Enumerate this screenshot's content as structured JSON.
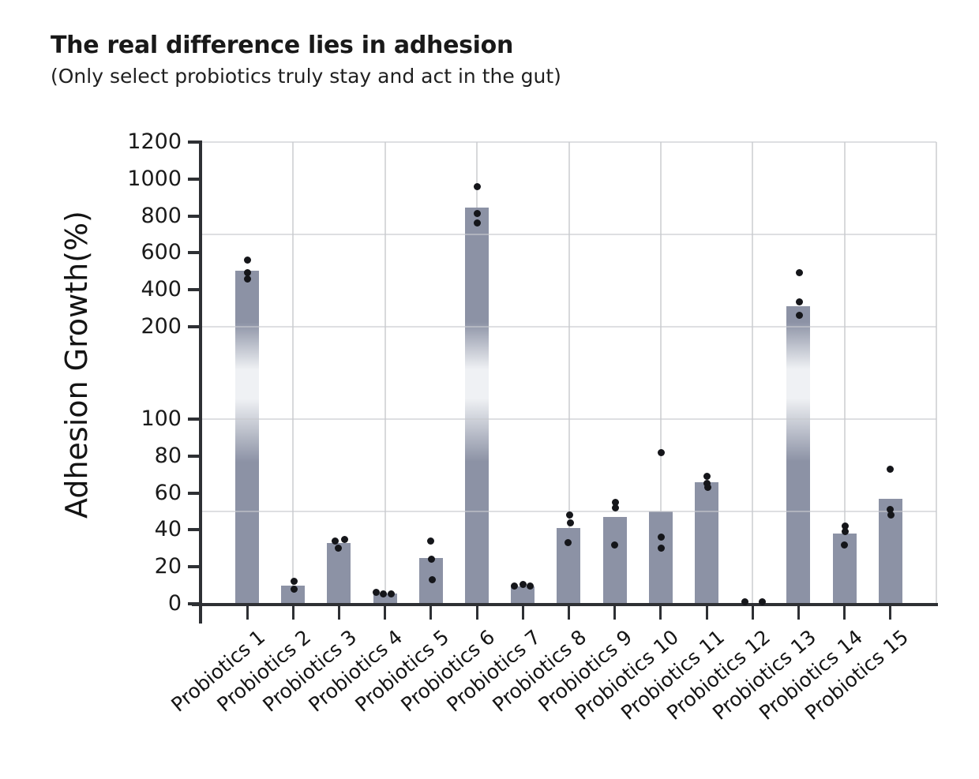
{
  "chart_data": {
    "type": "bar",
    "title": "The real difference lies in adhesion",
    "subtitle": "(Only select probiotics truly stay and act in the gut)",
    "ylabel": "Adhesion Growth(%)",
    "categories": [
      "Probiotics 1",
      "Probiotics 2",
      "Probiotics 3",
      "Probiotics 4",
      "Probiotics 5",
      "Probiotics 6",
      "Probiotics 7",
      "Probiotics 8",
      "Probiotics 9",
      "Probiotics 10",
      "Probiotics 11",
      "Probiotics 12",
      "Probiotics 13",
      "Probiotics 14",
      "Probiotics 15"
    ],
    "values": [
      505,
      10,
      33,
      5.5,
      25,
      845,
      9.5,
      41,
      47,
      50,
      66,
      0,
      310,
      38,
      57
    ],
    "points": [
      [
        560,
        493,
        458
      ],
      [
        12,
        8
      ],
      [
        35,
        34,
        30
      ],
      [
        6,
        5.5,
        5.5
      ],
      [
        34,
        24,
        13
      ],
      [
        960,
        812,
        762
      ],
      [
        10.5,
        9.5,
        9.5
      ],
      [
        48,
        44,
        33
      ],
      [
        55,
        52,
        32
      ],
      [
        82,
        36,
        30
      ],
      [
        69,
        65,
        63
      ],
      [
        1,
        1
      ],
      [
        492,
        335,
        262
      ],
      [
        42,
        39,
        32
      ],
      [
        73,
        51,
        48
      ]
    ],
    "points_dx": [
      [
        0,
        0,
        0
      ],
      [
        1,
        1
      ],
      [
        7,
        -5,
        -1
      ],
      [
        -11,
        -2,
        8
      ],
      [
        0,
        1,
        2
      ],
      [
        0,
        0,
        0
      ],
      [
        0,
        -11,
        9
      ],
      [
        1,
        2,
        -1
      ],
      [
        1,
        1,
        0
      ],
      [
        1,
        1,
        1
      ],
      [
        0,
        0,
        1
      ],
      [
        -10,
        12
      ],
      [
        1,
        1,
        1
      ],
      [
        1,
        1,
        0
      ],
      [
        0,
        0,
        1
      ]
    ],
    "yticks_lower": [
      0,
      20,
      40,
      60,
      80,
      100
    ],
    "yticks_upper": [
      200,
      400,
      600,
      800,
      1000,
      1200
    ],
    "ylim": [
      0,
      1200
    ],
    "axis_break_between": [
      100,
      200
    ],
    "grid": "on",
    "legend": "none",
    "colors": {
      "bar": "#8c92a5",
      "bar_fade": "#eff1f4",
      "point": "#15161a",
      "grid": "#d8d9db",
      "axis": "#2e3034",
      "text": "#1a1a1a"
    }
  }
}
